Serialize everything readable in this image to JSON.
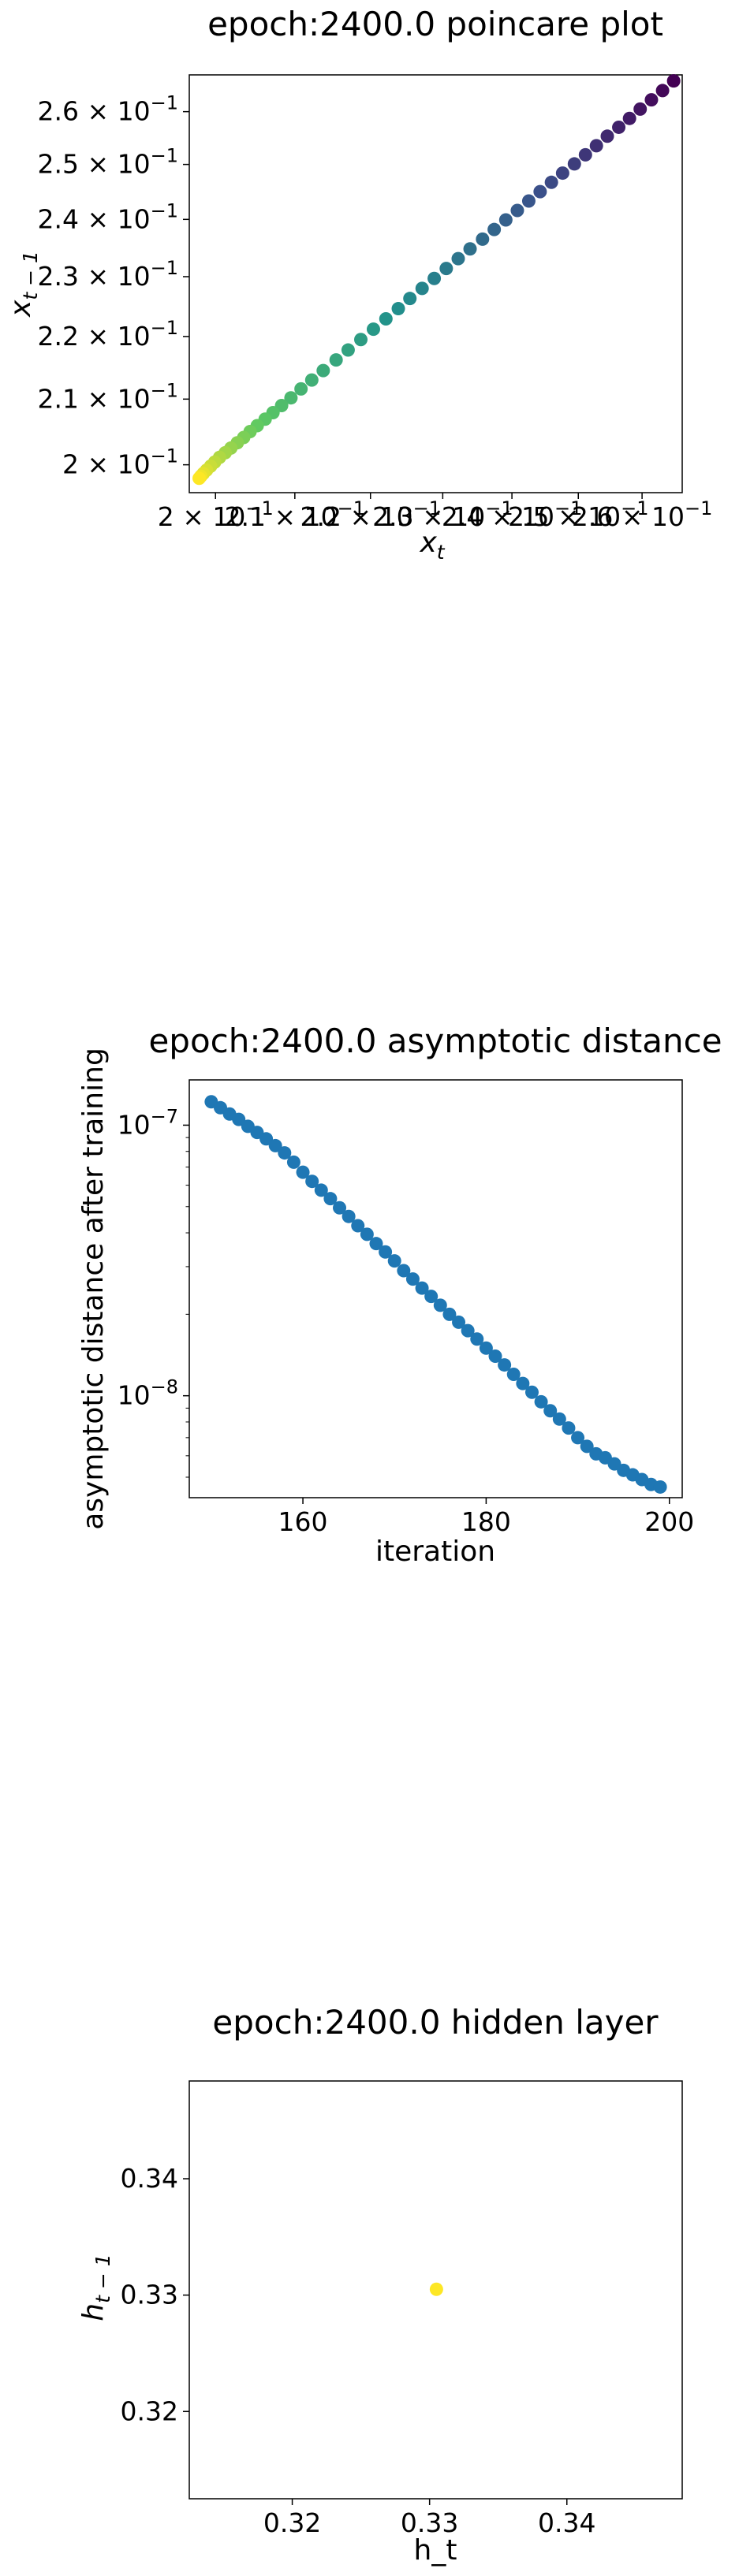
{
  "chart_data": [
    {
      "type": "scatter",
      "title": "epoch:2400.0 poincare plot",
      "xlabel_base": "x",
      "xlabel_sub": "t",
      "ylabel_base": "x",
      "ylabel_sub": "t − 1",
      "xscale": "log",
      "yscale": "log",
      "xlim": [
        0.1968,
        0.2665
      ],
      "ylim": [
        0.1959,
        0.2672
      ],
      "x_ticks": [
        {
          "value": 0.2,
          "mant": "2 × 10",
          "exp": "−1"
        },
        {
          "value": 0.21,
          "mant": "2.1 × 10",
          "exp": "−1"
        },
        {
          "value": 0.22,
          "mant": "2.2 × 10",
          "exp": "−1"
        },
        {
          "value": 0.23,
          "mant": "2.3 × 10",
          "exp": "−1"
        },
        {
          "value": 0.24,
          "mant": "2.4 × 10",
          "exp": "−1"
        },
        {
          "value": 0.25,
          "mant": "2.5 × 10",
          "exp": "−1"
        },
        {
          "value": 0.26,
          "mant": "2.6 × 10",
          "exp": "−1"
        }
      ],
      "y_ticks": [
        {
          "value": 0.2,
          "mant": "2 × 10",
          "exp": "−1"
        },
        {
          "value": 0.21,
          "mant": "2.1 × 10",
          "exp": "−1"
        },
        {
          "value": 0.22,
          "mant": "2.2 × 10",
          "exp": "−1"
        },
        {
          "value": 0.23,
          "mant": "2.3 × 10",
          "exp": "−1"
        },
        {
          "value": 0.24,
          "mant": "2.4 × 10",
          "exp": "−1"
        },
        {
          "value": 0.25,
          "mant": "2.5 × 10",
          "exp": "−1"
        },
        {
          "value": 0.26,
          "mant": "2.6 × 10",
          "exp": "−1"
        }
      ],
      "x": [
        0.2651,
        0.2633,
        0.2615,
        0.2597,
        0.258,
        0.2563,
        0.2545,
        0.2528,
        0.2511,
        0.2494,
        0.2476,
        0.2459,
        0.2442,
        0.2425,
        0.2408,
        0.2391,
        0.2374,
        0.2357,
        0.2339,
        0.2322,
        0.2305,
        0.2288,
        0.2271,
        0.2254,
        0.2238,
        0.2221,
        0.2204,
        0.2187,
        0.217,
        0.2154,
        0.2137,
        0.2122,
        0.2108,
        0.2095,
        0.2083,
        0.2072,
        0.2062,
        0.2052,
        0.2043,
        0.2035,
        0.2027,
        0.2019,
        0.2012,
        0.2005,
        0.1999,
        0.1994,
        0.1989,
        0.1985,
        0.1982,
        0.198
      ],
      "y": [
        0.266,
        0.2641,
        0.2623,
        0.2605,
        0.2587,
        0.257,
        0.2553,
        0.2535,
        0.2518,
        0.2501,
        0.2484,
        0.2467,
        0.245,
        0.2433,
        0.2416,
        0.2399,
        0.2382,
        0.2365,
        0.2348,
        0.2331,
        0.2314,
        0.2297,
        0.228,
        0.2263,
        0.2246,
        0.2229,
        0.2212,
        0.2195,
        0.2178,
        0.2162,
        0.2145,
        0.213,
        0.2116,
        0.2102,
        0.209,
        0.2079,
        0.2069,
        0.2059,
        0.205,
        0.2041,
        0.2033,
        0.2025,
        0.2018,
        0.2011,
        0.2004,
        0.1998,
        0.1992,
        0.1987,
        0.1983,
        0.198
      ],
      "colormap": "viridis",
      "color_start": "#440154",
      "color_end": "#fde725"
    },
    {
      "type": "scatter",
      "title": "epoch:2400.0 asymptotic distance",
      "xlabel": "iteration",
      "ylabel": "asymptotic distance after training",
      "yscale": "log",
      "xlim": [
        147.6,
        201.4
      ],
      "ylim": [
        4.2e-09,
        1.47e-07
      ],
      "x_ticks": [
        {
          "value": 160,
          "label": "160"
        },
        {
          "value": 180,
          "label": "180"
        },
        {
          "value": 200,
          "label": "200"
        }
      ],
      "y_ticks": [
        {
          "value": 1e-07,
          "mant": "10",
          "exp": "−7"
        },
        {
          "value": 1e-08,
          "mant": "10",
          "exp": "−8"
        }
      ],
      "x": [
        150,
        151,
        152,
        153,
        154,
        155,
        156,
        157,
        158,
        159,
        160,
        161,
        162,
        163,
        164,
        165,
        166,
        167,
        168,
        169,
        170,
        171,
        172,
        173,
        174,
        175,
        176,
        177,
        178,
        179,
        180,
        181,
        182,
        183,
        184,
        185,
        186,
        187,
        188,
        189,
        190,
        191,
        192,
        193,
        194,
        195,
        196,
        197,
        198,
        199
      ],
      "y": [
        1.22e-07,
        1.16e-07,
        1.1e-07,
        1.05e-07,
        9.9e-08,
        9.4e-08,
        8.9e-08,
        8.4e-08,
        7.9e-08,
        7.3e-08,
        6.7e-08,
        6.2e-08,
        5.75e-08,
        5.35e-08,
        4.95e-08,
        4.6e-08,
        4.25e-08,
        3.95e-08,
        3.65e-08,
        3.4e-08,
        3.15e-08,
        2.9e-08,
        2.7e-08,
        2.5e-08,
        2.33e-08,
        2.16e-08,
        2e-08,
        1.87e-08,
        1.74e-08,
        1.62e-08,
        1.5e-08,
        1.4e-08,
        1.3e-08,
        1.2e-08,
        1.11e-08,
        1.03e-08,
        9.5e-09,
        8.8e-09,
        8.2e-09,
        7.6e-09,
        7e-09,
        6.5e-09,
        6.1e-09,
        5.9e-09,
        5.6e-09,
        5.3e-09,
        5.1e-09,
        4.9e-09,
        4.7e-09,
        4.6e-09
      ],
      "color": "#1f77b4"
    },
    {
      "type": "scatter",
      "title": "epoch:2400.0 hidden layer",
      "xlabel": "h_t",
      "ylabel_base": "h",
      "ylabel_sub": "t − 1",
      "xlim": [
        0.3125,
        0.3484
      ],
      "ylim": [
        0.3125,
        0.3484
      ],
      "x_ticks": [
        {
          "value": 0.32,
          "label": "0.32"
        },
        {
          "value": 0.33,
          "label": "0.33"
        },
        {
          "value": 0.34,
          "label": "0.34"
        }
      ],
      "y_ticks": [
        {
          "value": 0.32,
          "label": "0.32"
        },
        {
          "value": 0.33,
          "label": "0.33"
        },
        {
          "value": 0.34,
          "label": "0.34"
        }
      ],
      "x": [
        0.3305
      ],
      "y": [
        0.3305
      ],
      "color": "#fde725"
    }
  ]
}
